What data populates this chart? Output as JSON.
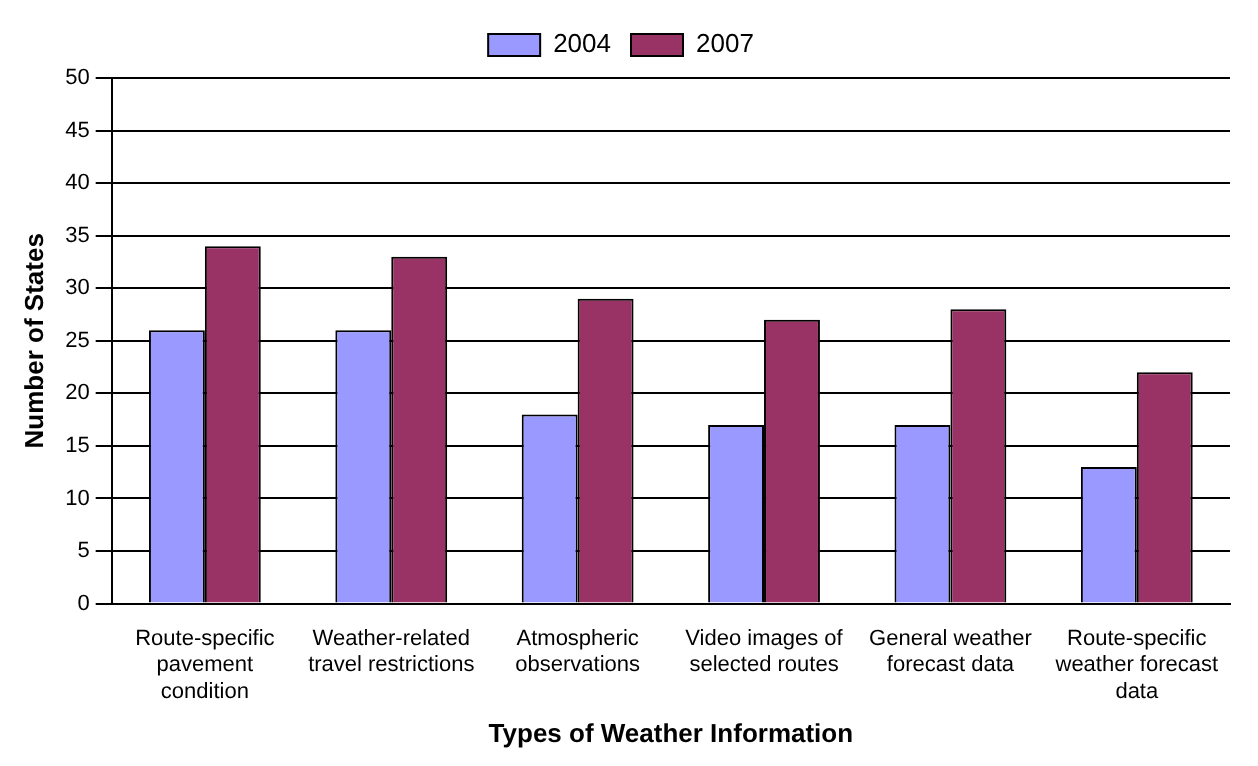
{
  "chart_data": {
    "type": "bar",
    "xlabel": "Types of Weather Information",
    "ylabel": "Number of States",
    "categories": [
      "Route-specific pavement condition",
      "Weather-related travel restrictions",
      "Atmospheric observations",
      "Video images of selected routes",
      "General weather forecast data",
      "Route-specific weather forecast data"
    ],
    "series": [
      {
        "name": "2004",
        "color": "#9999ff",
        "values": [
          26,
          26,
          18,
          17,
          17,
          13
        ]
      },
      {
        "name": "2007",
        "color": "#993366",
        "values": [
          34,
          33,
          29,
          27,
          28,
          22
        ]
      }
    ],
    "ylim": [
      0,
      50
    ],
    "yticks": [
      0,
      5,
      10,
      15,
      20,
      25,
      30,
      35,
      40,
      45,
      50
    ],
    "grid": "y",
    "legend": "top"
  }
}
